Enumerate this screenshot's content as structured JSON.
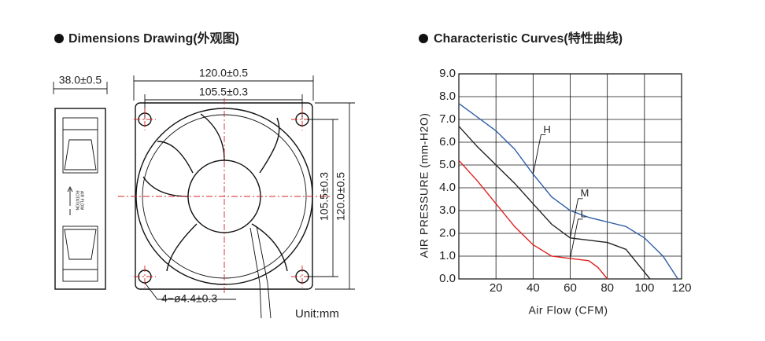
{
  "drawing": {
    "title": "Dimensions Drawing(外观图)",
    "side_width": "38.0±0.5",
    "outer_width": "120.0±0.5",
    "hole_spacing_width": "105.5±0.3",
    "hole_spacing_height": "105.5±0.3",
    "outer_height": "120.0±0.5",
    "holes": "4−ø4.4±0.3",
    "unit": "Unit:mm",
    "airflow": "AIR FLOW",
    "rotation": "ROTATION"
  },
  "chart_data": {
    "type": "line",
    "title": "Characteristic Curves(特性曲线)",
    "x_label": "Air Flow (CFM)",
    "y_label": "AIR PRESSURE (mm-H2O)",
    "xlim": [
      0,
      120
    ],
    "ylim": [
      0,
      9
    ],
    "xticks": [
      20,
      40,
      60,
      80,
      100,
      120
    ],
    "yticks": [
      {
        "value": 0,
        "label": "0.0"
      },
      {
        "value": 1,
        "label": "1.0"
      },
      {
        "value": 2,
        "label": "2.0"
      },
      {
        "value": 3,
        "label": "3.0"
      },
      {
        "value": 4,
        "label": "4.0"
      },
      {
        "value": 5,
        "label": "5.0"
      },
      {
        "value": 6,
        "label": "6.0"
      },
      {
        "value": 7,
        "label": "7.0"
      },
      {
        "value": 8,
        "label": "8.0"
      },
      {
        "value": 9,
        "label": "9.0"
      }
    ],
    "grid": true,
    "series": [
      {
        "name": "H",
        "color": "#2f5fa8",
        "x": [
          0,
          10,
          20,
          30,
          40,
          50,
          60,
          70,
          80,
          90,
          100,
          110,
          118
        ],
        "values": [
          7.7,
          7.1,
          6.5,
          5.7,
          4.6,
          3.6,
          3.0,
          2.7,
          2.5,
          2.3,
          1.8,
          1.0,
          0
        ]
      },
      {
        "name": "M",
        "color": "#222222",
        "x": [
          0,
          10,
          20,
          30,
          40,
          50,
          60,
          70,
          80,
          90,
          100,
          103
        ],
        "values": [
          6.7,
          5.8,
          5.0,
          4.2,
          3.3,
          2.4,
          1.8,
          1.7,
          1.6,
          1.3,
          0.3,
          0
        ]
      },
      {
        "name": "L",
        "color": "#e02020",
        "x": [
          0,
          10,
          20,
          30,
          40,
          50,
          60,
          70,
          75,
          80
        ],
        "values": [
          5.2,
          4.3,
          3.3,
          2.3,
          1.5,
          1.0,
          0.9,
          0.8,
          0.5,
          0
        ]
      }
    ]
  }
}
